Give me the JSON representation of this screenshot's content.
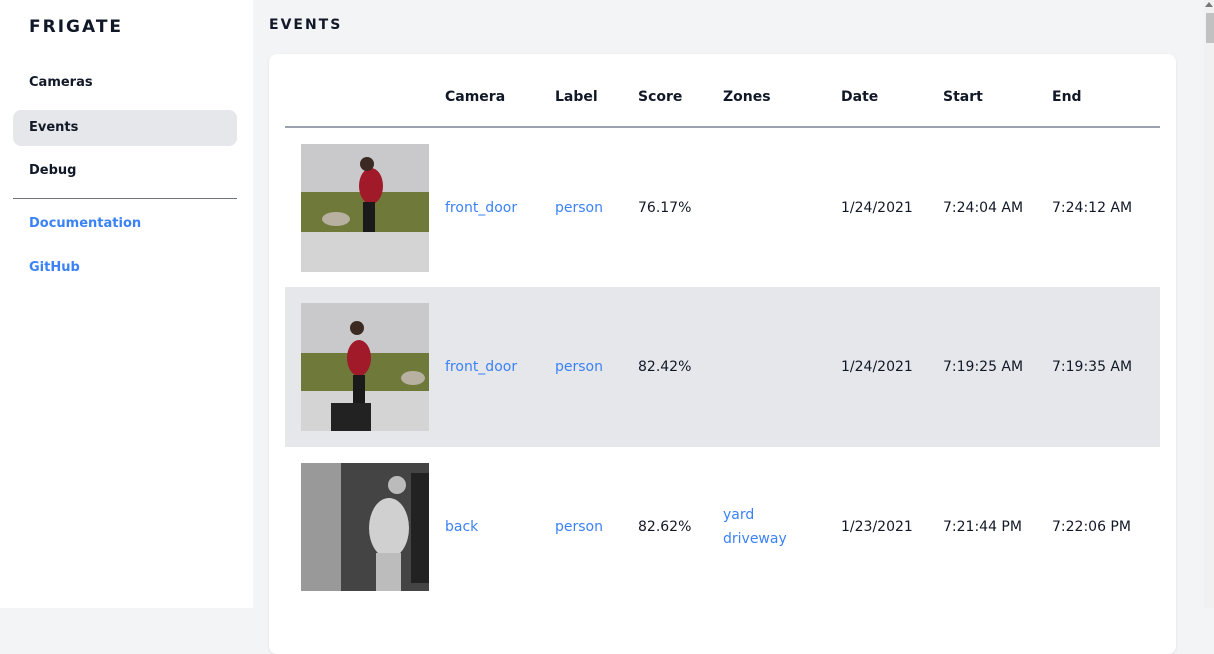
{
  "app": {
    "title": "FRIGATE"
  },
  "sidebar": {
    "items": [
      {
        "label": "Cameras"
      },
      {
        "label": "Events",
        "active": true
      },
      {
        "label": "Debug"
      }
    ],
    "links": [
      {
        "label": "Documentation"
      },
      {
        "label": "GitHub"
      }
    ]
  },
  "main": {
    "title": "EVENTS"
  },
  "table": {
    "headers": [
      "",
      "Camera",
      "Label",
      "Score",
      "Zones",
      "Date",
      "Start",
      "End"
    ],
    "rows": [
      {
        "camera": "front_door",
        "label": "person",
        "score": "76.17%",
        "zones": [
          "",
          ""
        ],
        "date": "1/24/2021",
        "start": "7:24:04 AM",
        "end": "7:24:12 AM"
      },
      {
        "camera": "front_door",
        "label": "person",
        "score": "82.42%",
        "zones": [
          "",
          ""
        ],
        "date": "1/24/2021",
        "start": "7:19:25 AM",
        "end": "7:19:35 AM"
      },
      {
        "camera": "back",
        "label": "person",
        "score": "82.62%",
        "zones": [
          "yard",
          "driveway"
        ],
        "date": "1/23/2021",
        "start": "7:21:44 PM",
        "end": "7:22:06 PM"
      }
    ]
  },
  "colors": {
    "accent": "#3b82f6",
    "active_bg": "#e5e7eb"
  }
}
